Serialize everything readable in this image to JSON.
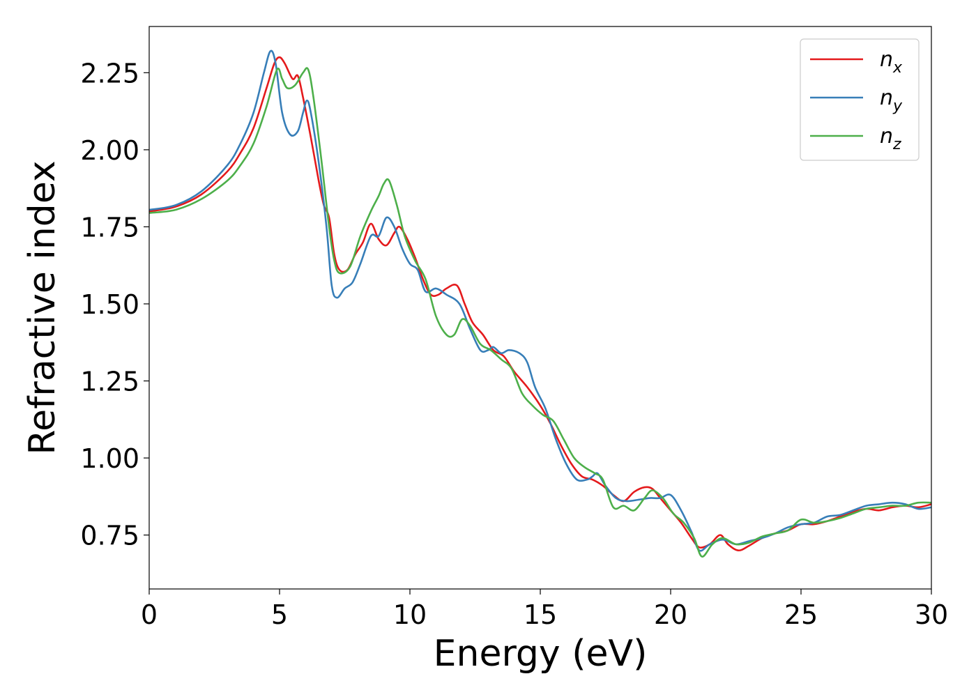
{
  "chart_data": {
    "type": "line",
    "xlabel": "Energy (eV)",
    "ylabel": "Refractive index",
    "xlim": [
      0,
      30
    ],
    "ylim": [
      0.575,
      2.4
    ],
    "x_ticks": [
      0,
      5,
      10,
      15,
      20,
      25,
      30
    ],
    "y_ticks": [
      0.75,
      1.0,
      1.25,
      1.5,
      1.75,
      2.0,
      2.25
    ],
    "x_tick_labels": [
      "0",
      "5",
      "10",
      "15",
      "20",
      "25",
      "30"
    ],
    "y_tick_labels": [
      "0.75",
      "1.00",
      "1.25",
      "1.50",
      "1.75",
      "2.00",
      "2.25"
    ],
    "grid": false,
    "legend_position": "top-right",
    "series": [
      {
        "name": "n_x",
        "label_base": "n",
        "label_sub": "x",
        "color": "#e41a1c",
        "points": [
          [
            0,
            1.8
          ],
          [
            1,
            1.815
          ],
          [
            2,
            1.855
          ],
          [
            3,
            1.93
          ],
          [
            3.5,
            1.99
          ],
          [
            4,
            2.07
          ],
          [
            4.5,
            2.2
          ],
          [
            4.8,
            2.28
          ],
          [
            5.0,
            2.3
          ],
          [
            5.2,
            2.28
          ],
          [
            5.5,
            2.23
          ],
          [
            5.7,
            2.24
          ],
          [
            5.9,
            2.17
          ],
          [
            6.2,
            2.04
          ],
          [
            6.5,
            1.9
          ],
          [
            6.7,
            1.82
          ],
          [
            6.9,
            1.78
          ],
          [
            7.1,
            1.66
          ],
          [
            7.3,
            1.61
          ],
          [
            7.6,
            1.61
          ],
          [
            7.9,
            1.66
          ],
          [
            8.2,
            1.7
          ],
          [
            8.5,
            1.76
          ],
          [
            8.8,
            1.71
          ],
          [
            9.1,
            1.69
          ],
          [
            9.4,
            1.73
          ],
          [
            9.6,
            1.75
          ],
          [
            9.9,
            1.71
          ],
          [
            10.2,
            1.65
          ],
          [
            10.5,
            1.58
          ],
          [
            10.8,
            1.53
          ],
          [
            11.1,
            1.53
          ],
          [
            11.4,
            1.55
          ],
          [
            11.8,
            1.56
          ],
          [
            12.1,
            1.5
          ],
          [
            12.4,
            1.44
          ],
          [
            12.8,
            1.4
          ],
          [
            13.2,
            1.35
          ],
          [
            13.6,
            1.33
          ],
          [
            14.0,
            1.28
          ],
          [
            14.5,
            1.23
          ],
          [
            15.0,
            1.17
          ],
          [
            15.4,
            1.11
          ],
          [
            15.8,
            1.04
          ],
          [
            16.2,
            0.98
          ],
          [
            16.6,
            0.94
          ],
          [
            17.0,
            0.93
          ],
          [
            17.4,
            0.91
          ],
          [
            17.8,
            0.88
          ],
          [
            18.2,
            0.86
          ],
          [
            18.6,
            0.89
          ],
          [
            19.0,
            0.905
          ],
          [
            19.3,
            0.9
          ],
          [
            19.6,
            0.87
          ],
          [
            20.0,
            0.83
          ],
          [
            20.4,
            0.79
          ],
          [
            20.8,
            0.74
          ],
          [
            21.1,
            0.71
          ],
          [
            21.5,
            0.72
          ],
          [
            21.9,
            0.75
          ],
          [
            22.2,
            0.72
          ],
          [
            22.6,
            0.7
          ],
          [
            23.0,
            0.715
          ],
          [
            23.5,
            0.74
          ],
          [
            24.0,
            0.755
          ],
          [
            24.5,
            0.765
          ],
          [
            25.0,
            0.785
          ],
          [
            25.5,
            0.785
          ],
          [
            26,
            0.795
          ],
          [
            26.5,
            0.81
          ],
          [
            27,
            0.825
          ],
          [
            27.5,
            0.835
          ],
          [
            28,
            0.83
          ],
          [
            28.5,
            0.84
          ],
          [
            29,
            0.845
          ],
          [
            29.5,
            0.84
          ],
          [
            30,
            0.85
          ]
        ]
      },
      {
        "name": "n_y",
        "label_base": "n",
        "label_sub": "y",
        "color": "#377eb8",
        "points": [
          [
            0,
            1.805
          ],
          [
            1,
            1.82
          ],
          [
            2,
            1.865
          ],
          [
            3,
            1.95
          ],
          [
            3.5,
            2.02
          ],
          [
            4,
            2.12
          ],
          [
            4.4,
            2.25
          ],
          [
            4.65,
            2.32
          ],
          [
            4.85,
            2.28
          ],
          [
            5.1,
            2.12
          ],
          [
            5.4,
            2.05
          ],
          [
            5.7,
            2.06
          ],
          [
            5.9,
            2.12
          ],
          [
            6.05,
            2.16
          ],
          [
            6.2,
            2.12
          ],
          [
            6.5,
            1.96
          ],
          [
            6.8,
            1.75
          ],
          [
            7.0,
            1.56
          ],
          [
            7.2,
            1.52
          ],
          [
            7.5,
            1.55
          ],
          [
            7.8,
            1.57
          ],
          [
            8.1,
            1.63
          ],
          [
            8.5,
            1.72
          ],
          [
            8.8,
            1.72
          ],
          [
            9.1,
            1.78
          ],
          [
            9.4,
            1.75
          ],
          [
            9.7,
            1.68
          ],
          [
            10.0,
            1.63
          ],
          [
            10.3,
            1.61
          ],
          [
            10.6,
            1.54
          ],
          [
            11.0,
            1.55
          ],
          [
            11.4,
            1.53
          ],
          [
            11.9,
            1.5
          ],
          [
            12.3,
            1.42
          ],
          [
            12.7,
            1.35
          ],
          [
            13.0,
            1.35
          ],
          [
            13.2,
            1.36
          ],
          [
            13.5,
            1.34
          ],
          [
            13.8,
            1.35
          ],
          [
            14.2,
            1.34
          ],
          [
            14.5,
            1.31
          ],
          [
            14.8,
            1.23
          ],
          [
            15.2,
            1.16
          ],
          [
            15.6,
            1.06
          ],
          [
            16.0,
            0.98
          ],
          [
            16.4,
            0.93
          ],
          [
            16.8,
            0.93
          ],
          [
            17.0,
            0.94
          ],
          [
            17.2,
            0.95
          ],
          [
            17.5,
            0.91
          ],
          [
            17.9,
            0.87
          ],
          [
            18.3,
            0.86
          ],
          [
            18.8,
            0.865
          ],
          [
            19.2,
            0.87
          ],
          [
            19.6,
            0.87
          ],
          [
            20.0,
            0.88
          ],
          [
            20.4,
            0.83
          ],
          [
            20.8,
            0.76
          ],
          [
            21.1,
            0.7
          ],
          [
            21.5,
            0.72
          ],
          [
            22.0,
            0.735
          ],
          [
            22.5,
            0.72
          ],
          [
            23.0,
            0.73
          ],
          [
            23.5,
            0.74
          ],
          [
            24.0,
            0.755
          ],
          [
            24.5,
            0.775
          ],
          [
            25.0,
            0.785
          ],
          [
            25.5,
            0.79
          ],
          [
            26,
            0.81
          ],
          [
            26.5,
            0.815
          ],
          [
            27,
            0.83
          ],
          [
            27.5,
            0.845
          ],
          [
            28,
            0.85
          ],
          [
            28.5,
            0.855
          ],
          [
            29,
            0.85
          ],
          [
            29.5,
            0.835
          ],
          [
            30,
            0.84
          ]
        ]
      },
      {
        "name": "n_z",
        "label_base": "n",
        "label_sub": "z",
        "color": "#4daf4a",
        "points": [
          [
            0,
            1.795
          ],
          [
            1,
            1.805
          ],
          [
            2,
            1.84
          ],
          [
            3,
            1.9
          ],
          [
            3.5,
            1.95
          ],
          [
            4,
            2.02
          ],
          [
            4.5,
            2.14
          ],
          [
            4.9,
            2.26
          ],
          [
            5.1,
            2.23
          ],
          [
            5.3,
            2.2
          ],
          [
            5.6,
            2.21
          ],
          [
            5.9,
            2.25
          ],
          [
            6.1,
            2.26
          ],
          [
            6.3,
            2.17
          ],
          [
            6.6,
            1.97
          ],
          [
            6.9,
            1.75
          ],
          [
            7.1,
            1.64
          ],
          [
            7.3,
            1.6
          ],
          [
            7.7,
            1.62
          ],
          [
            8.1,
            1.72
          ],
          [
            8.5,
            1.8
          ],
          [
            8.8,
            1.85
          ],
          [
            9.0,
            1.89
          ],
          [
            9.2,
            1.9
          ],
          [
            9.5,
            1.82
          ],
          [
            9.8,
            1.72
          ],
          [
            10.2,
            1.64
          ],
          [
            10.6,
            1.58
          ],
          [
            11.0,
            1.46
          ],
          [
            11.4,
            1.4
          ],
          [
            11.7,
            1.4
          ],
          [
            12.0,
            1.45
          ],
          [
            12.3,
            1.43
          ],
          [
            12.7,
            1.37
          ],
          [
            13.1,
            1.35
          ],
          [
            13.5,
            1.32
          ],
          [
            13.9,
            1.29
          ],
          [
            14.3,
            1.21
          ],
          [
            14.7,
            1.17
          ],
          [
            15.1,
            1.14
          ],
          [
            15.5,
            1.12
          ],
          [
            15.9,
            1.06
          ],
          [
            16.3,
            1.0
          ],
          [
            16.7,
            0.97
          ],
          [
            17.1,
            0.95
          ],
          [
            17.4,
            0.93
          ],
          [
            17.8,
            0.84
          ],
          [
            18.2,
            0.845
          ],
          [
            18.6,
            0.83
          ],
          [
            19.0,
            0.87
          ],
          [
            19.3,
            0.895
          ],
          [
            19.7,
            0.87
          ],
          [
            20.1,
            0.82
          ],
          [
            20.5,
            0.79
          ],
          [
            20.9,
            0.74
          ],
          [
            21.2,
            0.68
          ],
          [
            21.6,
            0.72
          ],
          [
            22.0,
            0.74
          ],
          [
            22.5,
            0.72
          ],
          [
            23.0,
            0.725
          ],
          [
            23.5,
            0.745
          ],
          [
            24.0,
            0.755
          ],
          [
            24.5,
            0.765
          ],
          [
            25.0,
            0.8
          ],
          [
            25.5,
            0.79
          ],
          [
            26,
            0.795
          ],
          [
            26.5,
            0.805
          ],
          [
            27,
            0.82
          ],
          [
            27.5,
            0.835
          ],
          [
            28,
            0.84
          ],
          [
            28.5,
            0.845
          ],
          [
            29,
            0.845
          ],
          [
            29.5,
            0.855
          ],
          [
            30,
            0.855
          ]
        ]
      }
    ]
  }
}
